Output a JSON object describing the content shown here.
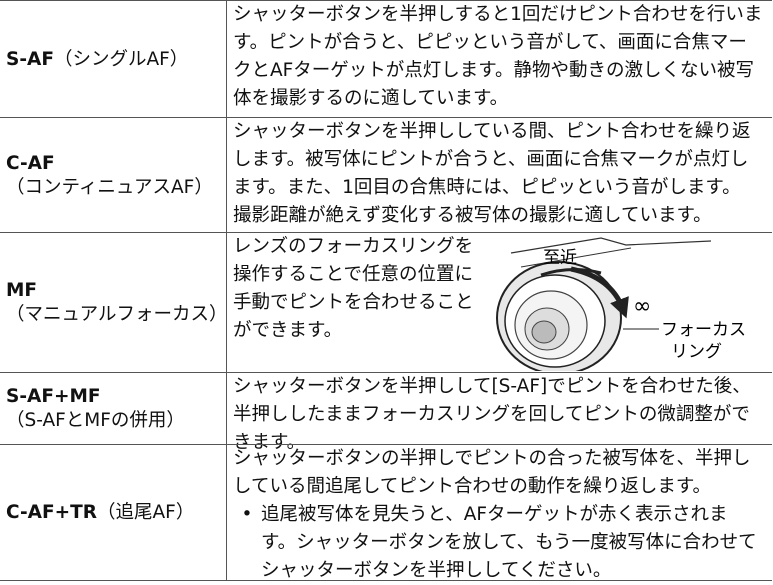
{
  "table": {
    "rows": [
      {
        "label": {
          "bold": "S-AF",
          "rest": "（シングルAF）"
        },
        "lines": [
          "シャッターボタンを半押しすると1回だけピント合わせを行いま",
          "す。ピントが合うと、ピピッという音がして、画面に合焦マー",
          "クとAFターゲットが点灯します。静物や動きの激しくない被写",
          "体を撮影するのに適しています。"
        ]
      },
      {
        "label": {
          "bold": "C-AF",
          "rest": "（コンティニュアスAF）"
        },
        "lines": [
          "シャッターボタンを半押ししている間、ピント合わせを繰り返",
          "します。被写体にピントが合うと、画面に合焦マークが点灯し",
          "ます。また、1回目の合焦時には、ピピッという音がします。",
          "撮影距離が絶えず変化する被写体の撮影に適しています。"
        ]
      },
      {
        "label": {
          "bold": "MF",
          "rest": "（マニュアルフォーカス）"
        },
        "lines": [
          "レンズのフォーカスリングを",
          "操作することで任意の位置に",
          "手動でピントを合わせること",
          "ができます。"
        ],
        "figure": {
          "near": "至近",
          "infinity": "∞",
          "ring": [
            "フォーカス",
            "リング"
          ]
        }
      },
      {
        "label": {
          "bold": "S-AF+MF",
          "rest": "（S-AFとMFの併用）"
        },
        "lines": [
          "シャッターボタンを半押しして[S-AF]でピントを合わせた後、",
          "半押ししたままフォーカスリングを回してピントの微調整がで",
          "きます。"
        ]
      },
      {
        "label": {
          "bold": "C-AF+TR",
          "rest": "（追尾AF）"
        },
        "lines": [
          "シャッターボタンの半押しでピントの合った被写体を、半押し",
          "している間追尾してピント合わせの動作を繰り返します。"
        ],
        "bullet": {
          "mark": "•",
          "lines": [
            "追尾被写体を見失うと、AFターゲットが赤く表示されま",
            "す。シャッターボタンを放して、もう一度被写体に合わせて",
            "シャッターボタンを半押ししてください。"
          ]
        }
      }
    ]
  }
}
